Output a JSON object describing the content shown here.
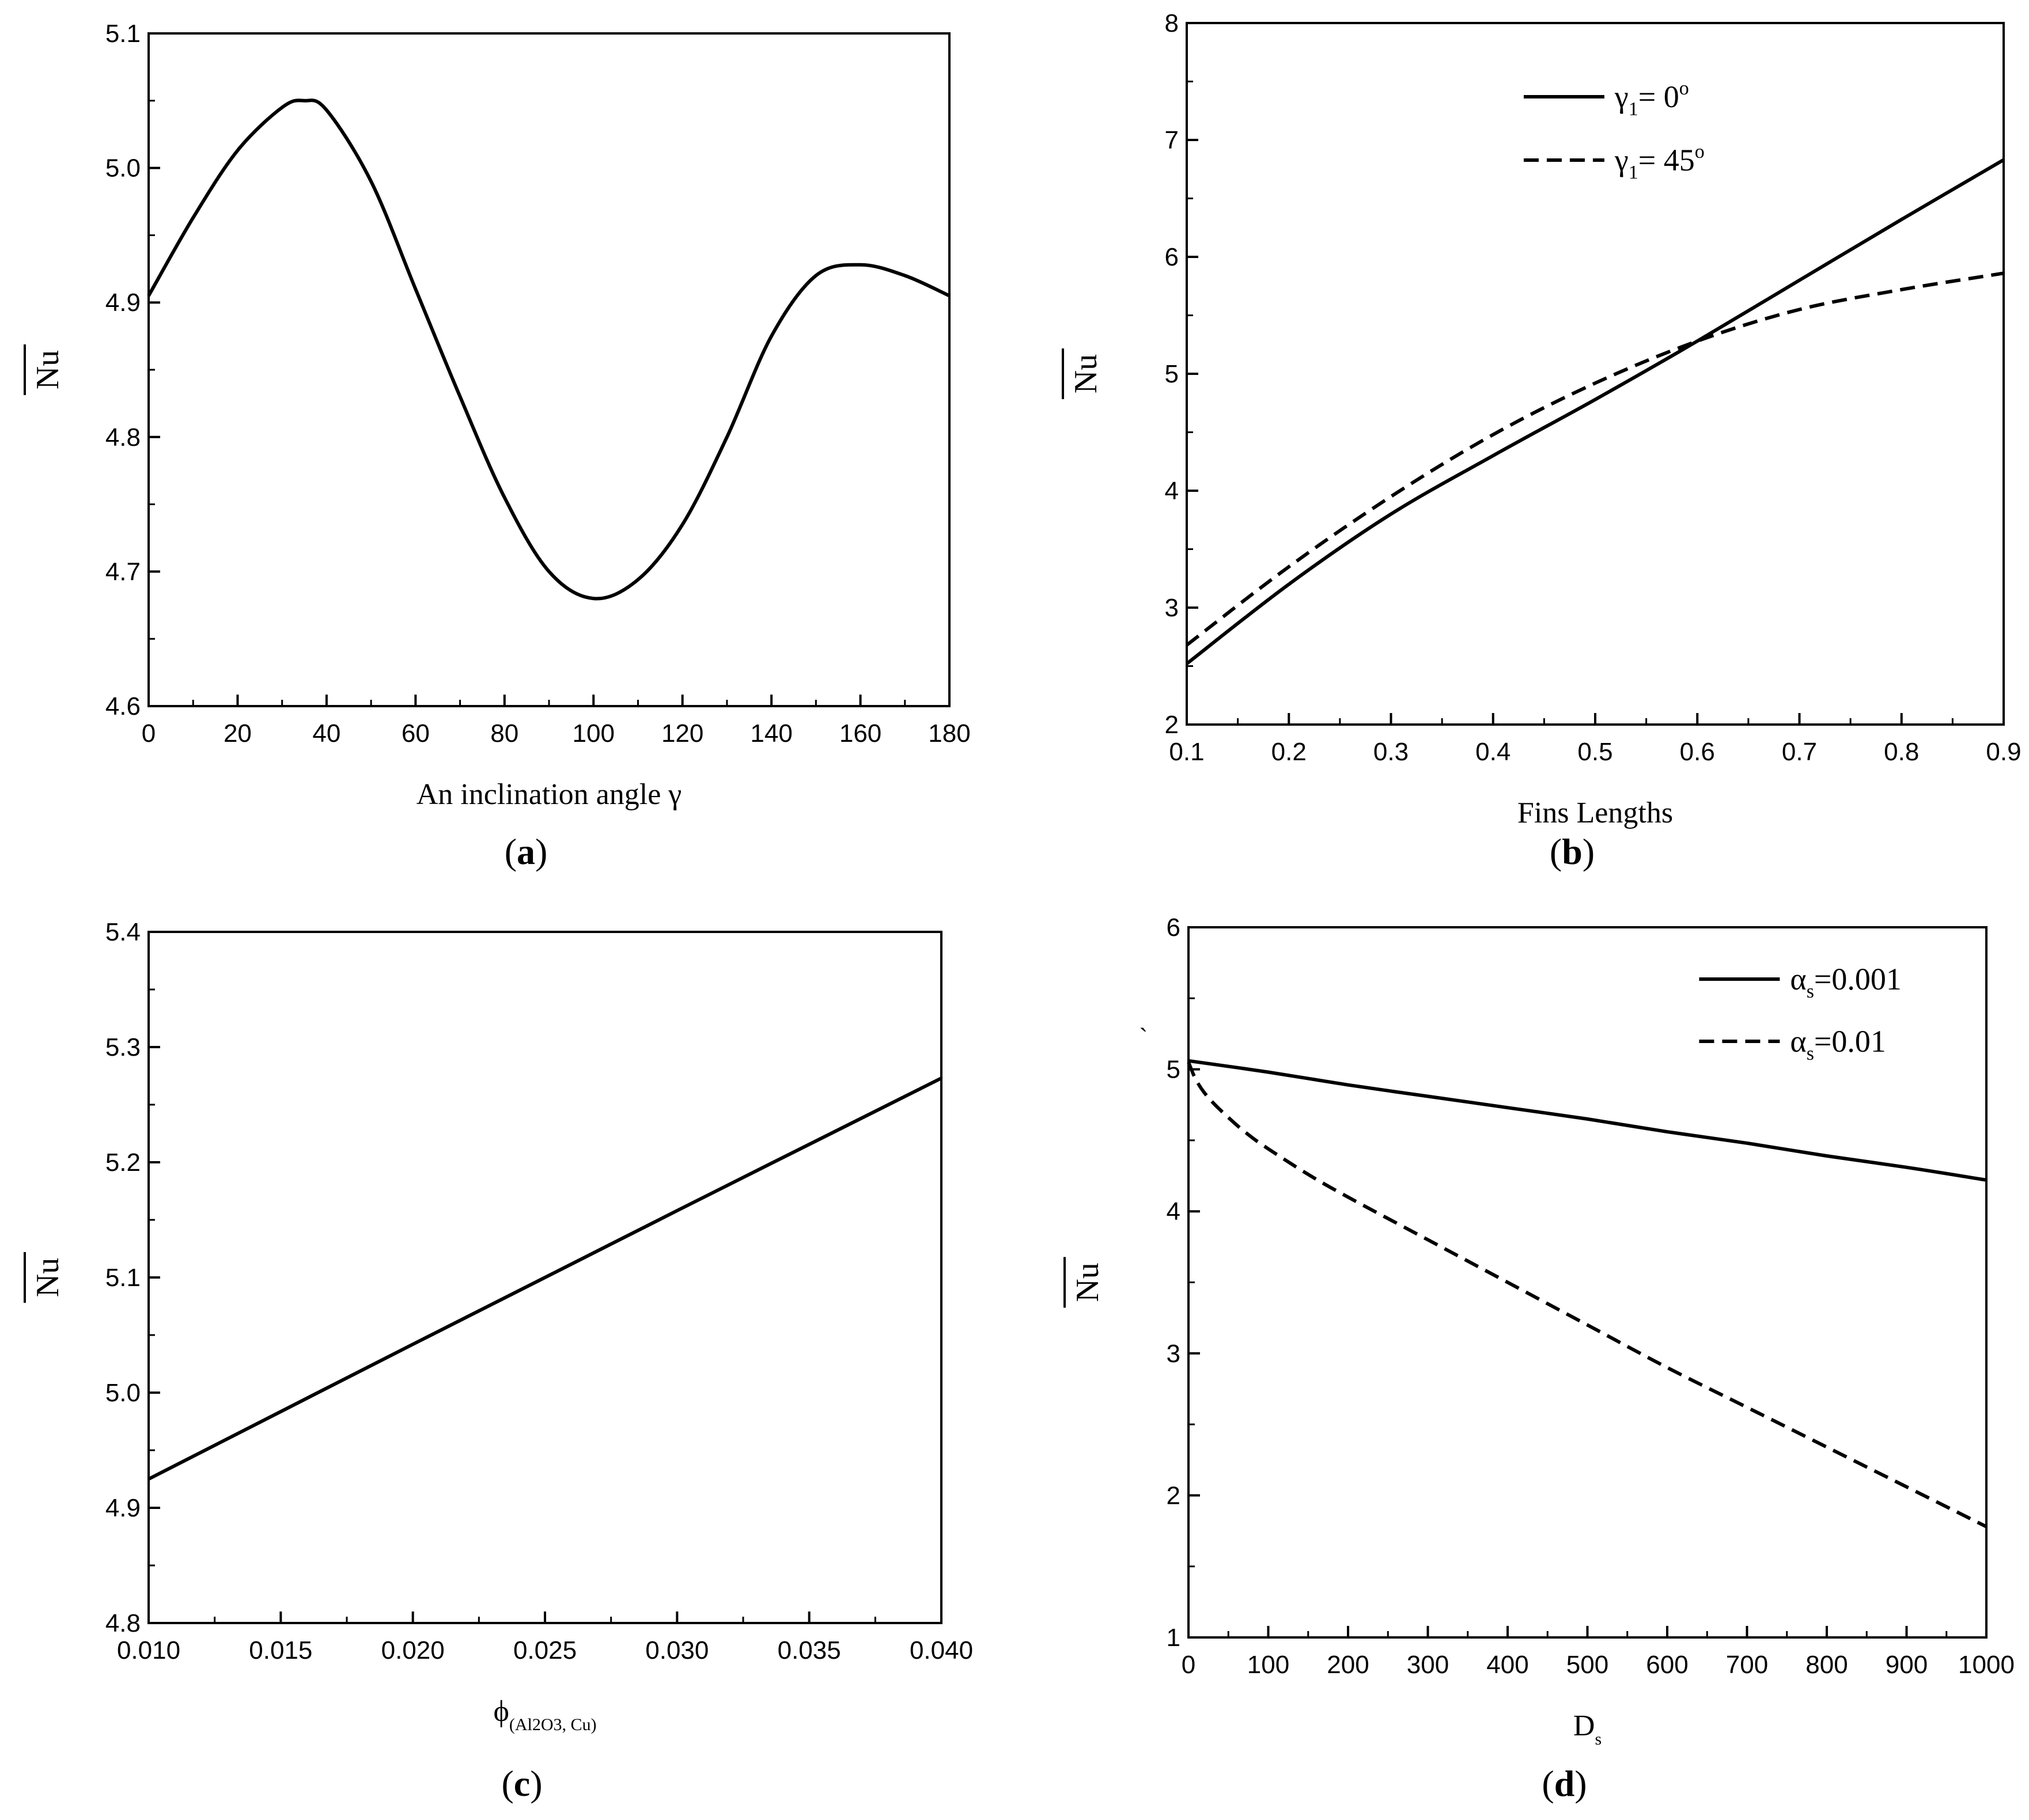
{
  "chart_data": [
    {
      "panel": "a",
      "caption_open": "(",
      "caption_letter": "a",
      "caption_close": ")",
      "type": "line",
      "xlabel": "An inclination angle γ",
      "ylabel": "Nu",
      "xlim": [
        0,
        180
      ],
      "ylim": [
        4.6,
        5.1
      ],
      "xticks": [
        0,
        20,
        40,
        60,
        80,
        100,
        120,
        140,
        160,
        180
      ],
      "yticks": [
        4.6,
        4.7,
        4.8,
        4.9,
        5.0,
        5.1
      ],
      "xtick_labels": [
        "0",
        "20",
        "40",
        "60",
        "80",
        "100",
        "120",
        "140",
        "160",
        "180"
      ],
      "ytick_labels": [
        "4.6",
        "4.7",
        "4.8",
        "4.9",
        "5.0",
        "5.1"
      ],
      "series": [
        {
          "name": "Nu",
          "style": "solid",
          "x": [
            0,
            10,
            20,
            30,
            35,
            40,
            50,
            60,
            70,
            80,
            90,
            100,
            110,
            120,
            130,
            140,
            150,
            160,
            170,
            180
          ],
          "y": [
            4.905,
            4.963,
            5.013,
            5.045,
            5.05,
            5.043,
            4.99,
            4.91,
            4.83,
            4.755,
            4.7,
            4.68,
            4.694,
            4.735,
            4.8,
            4.875,
            4.92,
            4.928,
            4.92,
            4.905
          ]
        }
      ]
    },
    {
      "panel": "b",
      "caption_open": "(",
      "caption_letter": "b",
      "caption_close": ")",
      "type": "line",
      "xlabel": "Fins Lengths",
      "ylabel": "Nu",
      "xlim": [
        0.1,
        0.9
      ],
      "ylim": [
        2,
        8
      ],
      "xticks": [
        0.1,
        0.2,
        0.3,
        0.4,
        0.5,
        0.6,
        0.7,
        0.8,
        0.9
      ],
      "yticks": [
        2,
        3,
        4,
        5,
        6,
        7,
        8
      ],
      "xtick_labels": [
        "0.1",
        "0.2",
        "0.3",
        "0.4",
        "0.5",
        "0.6",
        "0.7",
        "0.8",
        "0.9"
      ],
      "ytick_labels": [
        "2",
        "3",
        "4",
        "5",
        "6",
        "7",
        "8"
      ],
      "legend_position": "top-center",
      "legend": [
        {
          "symbol": "γ",
          "sub": "1",
          "eq": "= 0",
          "sup": "o",
          "style": "solid"
        },
        {
          "symbol": "γ",
          "sub": "1",
          "eq": "= 45",
          "sup": "o",
          "style": "dashed"
        }
      ],
      "series": [
        {
          "name": "γ1 = 0°",
          "style": "solid",
          "x": [
            0.1,
            0.2,
            0.3,
            0.4,
            0.5,
            0.6,
            0.7,
            0.8,
            0.9
          ],
          "y": [
            2.52,
            3.2,
            3.8,
            4.3,
            4.78,
            5.28,
            5.8,
            6.32,
            6.83
          ]
        },
        {
          "name": "γ1 = 45°",
          "style": "dashed",
          "x": [
            0.1,
            0.2,
            0.3,
            0.4,
            0.5,
            0.6,
            0.7,
            0.8,
            0.9
          ],
          "y": [
            2.68,
            3.35,
            3.95,
            4.48,
            4.92,
            5.28,
            5.55,
            5.72,
            5.86
          ]
        }
      ]
    },
    {
      "panel": "c",
      "caption_open": "(",
      "caption_letter": "c",
      "caption_close": ")",
      "type": "line",
      "xlabel": "ϕ",
      "xlabel_sub": "(Al2O3, Cu)",
      "ylabel": "Nu",
      "xlim": [
        0.01,
        0.04
      ],
      "ylim": [
        4.8,
        5.4
      ],
      "xticks": [
        0.01,
        0.015,
        0.02,
        0.025,
        0.03,
        0.035,
        0.04
      ],
      "yticks": [
        4.8,
        4.9,
        5.0,
        5.1,
        5.2,
        5.3,
        5.4
      ],
      "xtick_labels": [
        "0.010",
        "0.015",
        "0.020",
        "0.025",
        "0.030",
        "0.035",
        "0.040"
      ],
      "ytick_labels": [
        "4.8",
        "4.9",
        "5.0",
        "5.1",
        "5.2",
        "5.3",
        "5.4"
      ],
      "series": [
        {
          "name": "Nu",
          "style": "solid",
          "x": [
            0.01,
            0.02,
            0.03,
            0.04
          ],
          "y": [
            4.925,
            5.042,
            5.158,
            5.273
          ]
        }
      ]
    },
    {
      "panel": "d",
      "caption_open": "(",
      "caption_letter": "d",
      "caption_close": ")",
      "type": "line",
      "xlabel": "D",
      "xlabel_sub": "s",
      "ylabel": "Nu",
      "stray_mark": "`",
      "xlim": [
        0,
        1000
      ],
      "ylim": [
        1,
        6
      ],
      "xticks": [
        0,
        100,
        200,
        300,
        400,
        500,
        600,
        700,
        800,
        900,
        1000
      ],
      "yticks": [
        1,
        2,
        3,
        4,
        5,
        6
      ],
      "xtick_labels": [
        "0",
        "100",
        "200",
        "300",
        "400",
        "500",
        "600",
        "700",
        "800",
        "900",
        "1000"
      ],
      "ytick_labels": [
        "1",
        "2",
        "3",
        "4",
        "5",
        "6"
      ],
      "legend_position": "top-right",
      "legend": [
        {
          "symbol": "α",
          "sub": "s",
          "eq": "=0.001",
          "sup": "",
          "style": "solid"
        },
        {
          "symbol": "α",
          "sub": "s",
          "eq": "=0.01",
          "sup": "",
          "style": "dashed"
        }
      ],
      "series": [
        {
          "name": "αs = 0.001",
          "style": "solid",
          "x": [
            0,
            100,
            200,
            300,
            400,
            500,
            600,
            700,
            800,
            900,
            1000
          ],
          "y": [
            5.06,
            4.98,
            4.89,
            4.81,
            4.73,
            4.65,
            4.56,
            4.48,
            4.39,
            4.31,
            4.22
          ]
        },
        {
          "name": "αs = 0.01",
          "style": "dashed",
          "x": [
            0,
            10,
            25,
            50,
            75,
            100,
            150,
            200,
            300,
            400,
            500,
            600,
            700,
            800,
            900,
            1000
          ],
          "y": [
            5.05,
            4.92,
            4.8,
            4.66,
            4.54,
            4.44,
            4.26,
            4.1,
            3.8,
            3.5,
            3.2,
            2.9,
            2.62,
            2.34,
            2.06,
            1.78
          ]
        }
      ]
    }
  ]
}
